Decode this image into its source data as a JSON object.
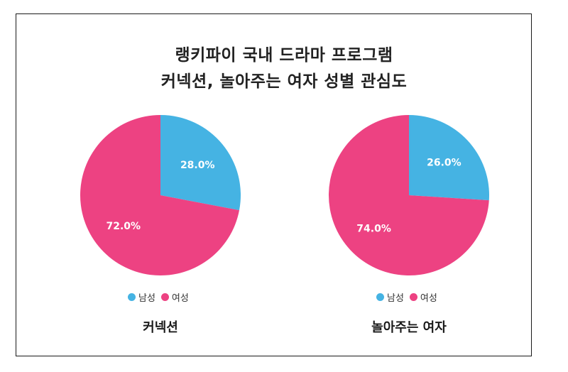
{
  "title_line1": "랭키파이 국내 드라마 프로그램",
  "title_line2": "커넥션, 놀아주는 여자 성별 관심도",
  "colors": {
    "male": "#45b3e3",
    "female": "#ed4282"
  },
  "chart_data": [
    {
      "type": "pie",
      "subtitle": "커넥션",
      "legend": [
        "남성",
        "여성"
      ],
      "slices": [
        {
          "label": "남성",
          "value": 28.0,
          "display": "28.0%"
        },
        {
          "label": "여성",
          "value": 72.0,
          "display": "72.0%"
        }
      ]
    },
    {
      "type": "pie",
      "subtitle": "놀아주는 여자",
      "legend": [
        "남성",
        "여성"
      ],
      "slices": [
        {
          "label": "남성",
          "value": 26.0,
          "display": "26.0%"
        },
        {
          "label": "여성",
          "value": 74.0,
          "display": "74.0%"
        }
      ]
    }
  ]
}
